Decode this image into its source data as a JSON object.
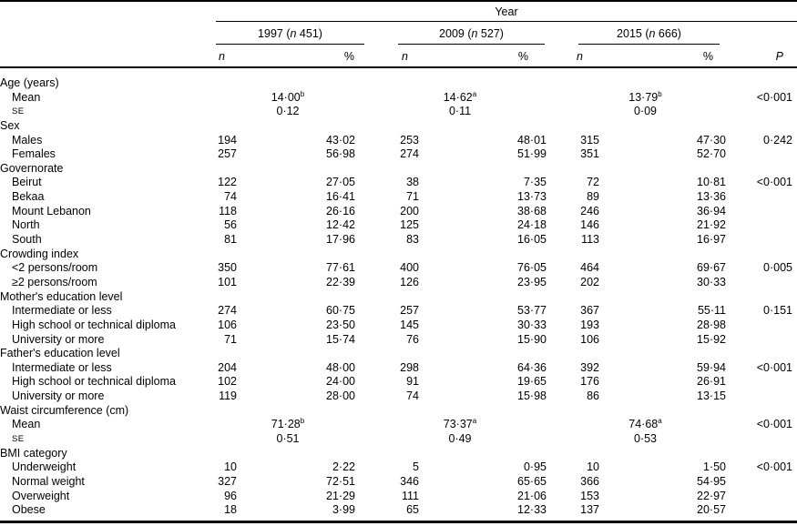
{
  "header": {
    "year_label": "Year",
    "groups": [
      {
        "pre": "1997 (",
        "n": "n",
        "post": " 451)"
      },
      {
        "pre": "2009 (",
        "n": "n",
        "post": " 527)"
      },
      {
        "pre": "2015 (",
        "n": "n",
        "post": " 666)"
      }
    ],
    "subheader": {
      "n": "n",
      "pct": "%",
      "p": "P"
    }
  },
  "rows": [
    {
      "kind": "section",
      "label": "Age (years)",
      "p": ""
    },
    {
      "kind": "center",
      "label": "Mean",
      "indent": true,
      "cells": [
        [
          "14·00",
          "b"
        ],
        [
          "14·62",
          "a"
        ],
        [
          "13·79",
          "b"
        ]
      ],
      "p": "<0·001"
    },
    {
      "kind": "center",
      "label": "SE",
      "indent": true,
      "sc": true,
      "cells": [
        [
          "0·12",
          ""
        ],
        [
          "0·11",
          ""
        ],
        [
          "0·09",
          ""
        ]
      ],
      "p": ""
    },
    {
      "kind": "section",
      "label": "Sex",
      "p": ""
    },
    {
      "kind": "data",
      "label": "Males",
      "indent": true,
      "cells": [
        "194",
        "43·02",
        "253",
        "48·01",
        "315",
        "47·30"
      ],
      "p": "0·242"
    },
    {
      "kind": "data",
      "label": "Females",
      "indent": true,
      "cells": [
        "257",
        "56·98",
        "274",
        "51·99",
        "351",
        "52·70"
      ],
      "p": ""
    },
    {
      "kind": "section",
      "label": "Governorate",
      "p": ""
    },
    {
      "kind": "data",
      "label": "Beirut",
      "indent": true,
      "cells": [
        "122",
        "27·05",
        "38",
        "7·35",
        "72",
        "10·81"
      ],
      "p": "<0·001"
    },
    {
      "kind": "data",
      "label": "Bekaa",
      "indent": true,
      "cells": [
        "74",
        "16·41",
        "71",
        "13·73",
        "89",
        "13·36"
      ],
      "p": ""
    },
    {
      "kind": "data",
      "label": "Mount Lebanon",
      "indent": true,
      "cells": [
        "118",
        "26·16",
        "200",
        "38·68",
        "246",
        "36·94"
      ],
      "p": ""
    },
    {
      "kind": "data",
      "label": "North",
      "indent": true,
      "cells": [
        "56",
        "12·42",
        "125",
        "24·18",
        "146",
        "21·92"
      ],
      "p": ""
    },
    {
      "kind": "data",
      "label": "South",
      "indent": true,
      "cells": [
        "81",
        "17·96",
        "83",
        "16·05",
        "113",
        "16·97"
      ],
      "p": ""
    },
    {
      "kind": "section",
      "label": "Crowding index",
      "p": ""
    },
    {
      "kind": "data",
      "label": "<2 persons/room",
      "indent": true,
      "cells": [
        "350",
        "77·61",
        "400",
        "76·05",
        "464",
        "69·67"
      ],
      "p": "0·005"
    },
    {
      "kind": "data",
      "label": "≥2 persons/room",
      "indent": true,
      "cells": [
        "101",
        "22·39",
        "126",
        "23·95",
        "202",
        "30·33"
      ],
      "p": ""
    },
    {
      "kind": "section",
      "label": "Mother's education level",
      "p": ""
    },
    {
      "kind": "data",
      "label": "Intermediate or less",
      "indent": true,
      "cells": [
        "274",
        "60·75",
        "257",
        "53·77",
        "367",
        "55·11"
      ],
      "p": "0·151"
    },
    {
      "kind": "data",
      "label": "High school or technical diploma",
      "indent": true,
      "cells": [
        "106",
        "23·50",
        "145",
        "30·33",
        "193",
        "28·98"
      ],
      "p": ""
    },
    {
      "kind": "data",
      "label": "University or more",
      "indent": true,
      "cells": [
        "71",
        "15·74",
        "76",
        "15·90",
        "106",
        "15·92"
      ],
      "p": ""
    },
    {
      "kind": "section",
      "label": "Father's education level",
      "p": ""
    },
    {
      "kind": "data",
      "label": "Intermediate or less",
      "indent": true,
      "cells": [
        "204",
        "48·00",
        "298",
        "64·36",
        "392",
        "59·94"
      ],
      "p": "<0·001"
    },
    {
      "kind": "data",
      "label": "High school or technical diploma",
      "indent": true,
      "cells": [
        "102",
        "24·00",
        "91",
        "19·65",
        "176",
        "26·91"
      ],
      "p": ""
    },
    {
      "kind": "data",
      "label": "University or more",
      "indent": true,
      "cells": [
        "119",
        "28·00",
        "74",
        "15·98",
        "86",
        "13·15"
      ],
      "p": ""
    },
    {
      "kind": "section",
      "label": "Waist circumference (cm)",
      "p": ""
    },
    {
      "kind": "center",
      "label": "Mean",
      "indent": true,
      "cells": [
        [
          "71·28",
          "b"
        ],
        [
          "73·37",
          "a"
        ],
        [
          "74·68",
          "a"
        ]
      ],
      "p": "<0·001"
    },
    {
      "kind": "center",
      "label": "SE",
      "indent": true,
      "sc": true,
      "cells": [
        [
          "0·51",
          ""
        ],
        [
          "0·49",
          ""
        ],
        [
          "0·53",
          ""
        ]
      ],
      "p": ""
    },
    {
      "kind": "section",
      "label": "BMI category",
      "p": ""
    },
    {
      "kind": "data",
      "label": "Underweight",
      "indent": true,
      "cells": [
        "10",
        "2·22",
        "5",
        "0·95",
        "10",
        "1·50"
      ],
      "p": "<0·001"
    },
    {
      "kind": "data",
      "label": "Normal weight",
      "indent": true,
      "cells": [
        "327",
        "72·51",
        "346",
        "65·65",
        "366",
        "54·95"
      ],
      "p": ""
    },
    {
      "kind": "data",
      "label": "Overweight",
      "indent": true,
      "cells": [
        "96",
        "21·29",
        "111",
        "21·06",
        "153",
        "22·97"
      ],
      "p": ""
    },
    {
      "kind": "data",
      "label": "Obese",
      "indent": true,
      "cells": [
        "18",
        "3·99",
        "65",
        "12·33",
        "137",
        "20·57"
      ],
      "p": ""
    }
  ]
}
